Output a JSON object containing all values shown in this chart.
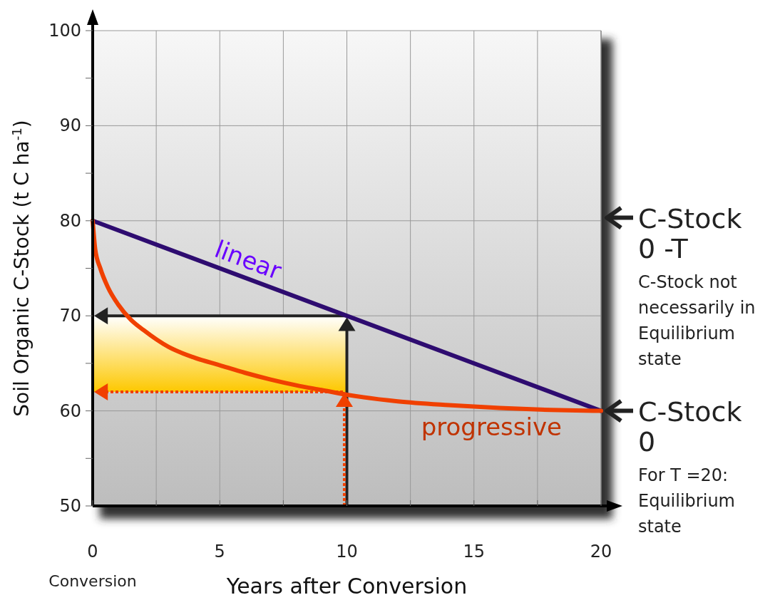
{
  "chart_data": {
    "type": "line",
    "xlabel": "Years after Conversion",
    "ylabel": "Soil Organic C-Stock (t C ha$^{-1}$)",
    "x": [
      0,
      0.1,
      0.3,
      0.6,
      1,
      1.5,
      2,
      3,
      4,
      5,
      6,
      7,
      8,
      9,
      10,
      12,
      14,
      16,
      18,
      20
    ],
    "series": [
      {
        "name": "linear",
        "color": "#2e0c70",
        "x": [
          0,
          20
        ],
        "values": [
          80,
          60
        ]
      },
      {
        "name": "progressive",
        "color": "#f04000",
        "values": [
          80,
          77,
          75,
          73,
          71.2,
          69.6,
          68.5,
          66.7,
          65.6,
          64.8,
          64,
          63.3,
          62.7,
          62.2,
          61.7,
          61,
          60.6,
          60.3,
          60.1,
          60
        ]
      }
    ],
    "xlim": [
      0,
      20
    ],
    "xticks": [
      0,
      {
        "value": 2.5,
        "label": null
      },
      5,
      {
        "value": 7.5,
        "label": null
      },
      10,
      {
        "value": 12.5,
        "label": null
      },
      15,
      {
        "value": 17.5,
        "label": null
      },
      20
    ],
    "ylim": [
      50,
      100
    ],
    "yticks": [
      50,
      {
        "value": 55,
        "label": null
      },
      60,
      {
        "value": 65,
        "label": null
      },
      70,
      {
        "value": 75,
        "label": null
      },
      80,
      {
        "value": 85,
        "label": null
      },
      90,
      {
        "value": 95,
        "label": null
      },
      100
    ],
    "grid": true,
    "line_style": "solid",
    "marker": "none",
    "bands": [
      {
        "axis": "y",
        "from": 62,
        "to": 70,
        "color": "#fdc800"
      }
    ],
    "ref_lines": [
      {
        "axis": "y",
        "value": 70,
        "color": "#222222",
        "line_style": "solid"
      },
      {
        "axis": "y",
        "value": 62,
        "color": "#f04000",
        "line_style": "dotted"
      },
      {
        "axis": "x",
        "value": 10,
        "color": "#222222",
        "line_style": "solid"
      },
      {
        "axis": "x",
        "value": 9.9,
        "color": "#f04000",
        "line_style": "dotted"
      }
    ],
    "annotations": [
      "Conversion",
      "C-Stock 0 -T",
      "C-Stock not necessarily in Equilibrium state",
      {
        "text": "C-Stock 0",
        "x": 20,
        "y": 60
      },
      "For T =20: Equilibrium state"
    ]
  }
}
